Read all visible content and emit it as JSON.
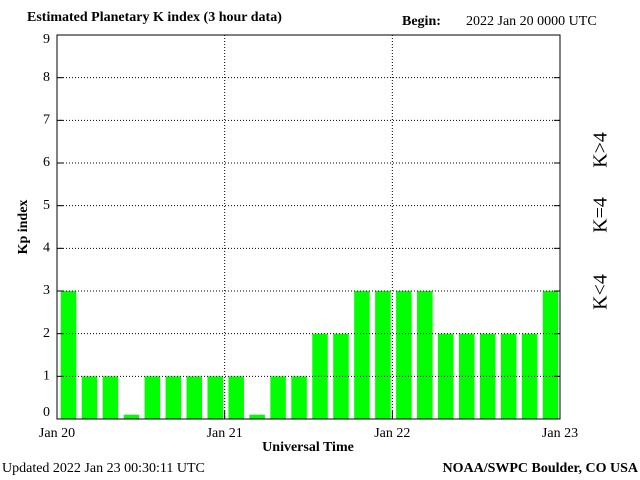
{
  "chart_data": {
    "type": "bar",
    "title": "Estimated Planetary K index (3 hour data)",
    "begin_label": "Begin:",
    "begin_value": "2022 Jan 20 0000 UTC",
    "ylabel": "Kp index",
    "xlabel": "Universal Time",
    "updated": "Updated 2022 Jan 23 00:30:11 UTC",
    "source": "NOAA/SWPC Boulder, CO USA",
    "x": [
      0,
      3,
      6,
      9,
      12,
      15,
      18,
      21,
      24,
      27,
      30,
      33,
      36,
      39,
      42,
      45,
      48,
      51,
      54,
      57,
      60,
      63,
      66,
      69
    ],
    "values": [
      3,
      1,
      1,
      0.1,
      1,
      1,
      1,
      1,
      1,
      0.1,
      1,
      1,
      2,
      2,
      3,
      3,
      3,
      3,
      2,
      2,
      2,
      2,
      2,
      3
    ],
    "color": "#00ff00",
    "xlim": [
      0,
      72
    ],
    "xticks": [
      {
        "value": 0,
        "label": "Jan 20"
      },
      {
        "value": 24,
        "label": "Jan 21"
      },
      {
        "value": 48,
        "label": "Jan 22"
      },
      {
        "value": 72,
        "label": "Jan 23"
      }
    ],
    "ylim": [
      0,
      9
    ],
    "yticks": [
      0,
      1,
      2,
      3,
      4,
      5,
      6,
      7,
      8,
      9
    ],
    "grid": true,
    "legend": [
      {
        "label": "K<4",
        "color": "#00ff00"
      },
      {
        "label": "K=4",
        "color": "#ffcc00"
      },
      {
        "label": "K>4",
        "color": "#ff2000"
      }
    ]
  }
}
